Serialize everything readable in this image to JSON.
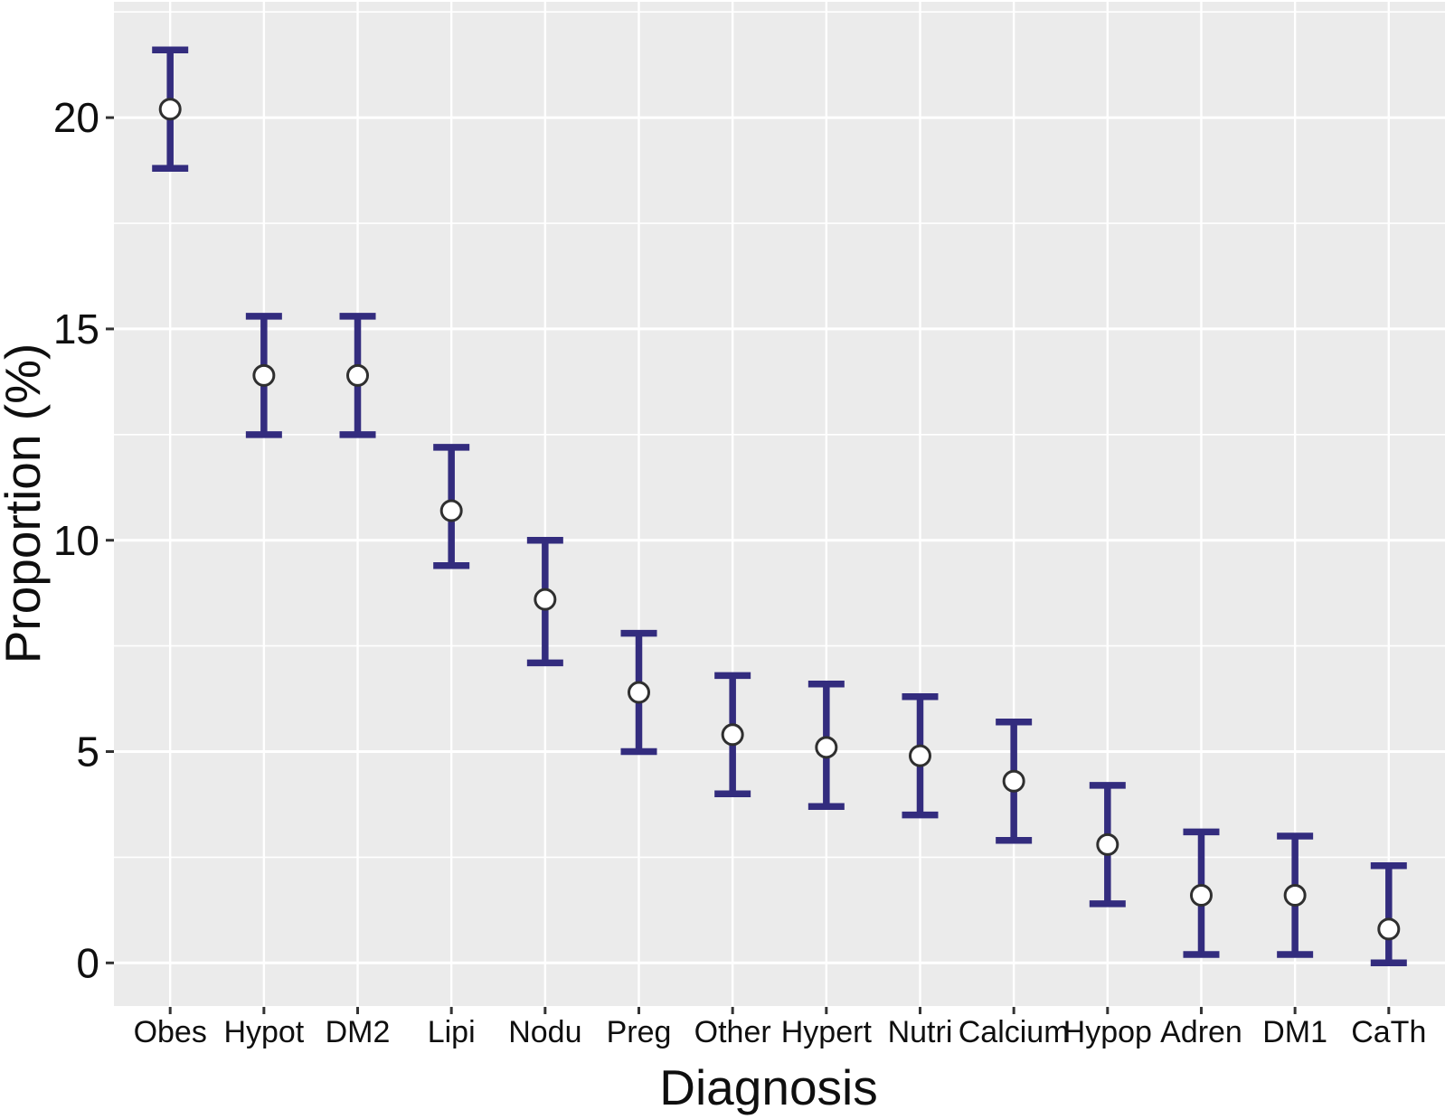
{
  "chart_data": {
    "type": "scatter",
    "subtype": "point-with-errorbars",
    "title": "",
    "xlabel": "Diagnosis",
    "ylabel": "Proportion (%)",
    "categories": [
      "Obes",
      "Hypot",
      "DM2",
      "Lipi",
      "Nodu",
      "Preg",
      "Other",
      "Hypert",
      "Nutri",
      "Calcium",
      "Hypop",
      "Adren",
      "DM1",
      "CaTh"
    ],
    "series": [
      {
        "name": "Proportion (%)",
        "values": [
          20.2,
          13.9,
          13.9,
          10.7,
          8.6,
          6.4,
          5.4,
          5.1,
          4.9,
          4.3,
          2.8,
          1.6,
          1.6,
          0.8
        ],
        "ci_lower": [
          18.8,
          12.5,
          12.5,
          9.4,
          7.1,
          5.0,
          4.0,
          3.7,
          3.5,
          2.9,
          1.4,
          0.2,
          0.2,
          0.0
        ],
        "ci_upper": [
          21.6,
          15.3,
          15.3,
          12.2,
          10.0,
          7.8,
          6.8,
          6.6,
          6.3,
          5.7,
          4.2,
          3.1,
          3.0,
          2.3
        ]
      }
    ],
    "ylim": [
      -1.02,
      22.74
    ],
    "yticks": [
      0,
      5,
      10,
      15,
      20
    ],
    "ytick_labels": [
      "0",
      "5",
      "10",
      "15",
      "20"
    ],
    "yticks_minor": [
      2.5,
      7.5,
      12.5,
      17.5,
      22.5
    ],
    "grid": "white major and minor horizontal lines plus one vertical line per category on grey panel",
    "legend": "none",
    "colors": {
      "errorbar": "#332c7e",
      "point_fill": "#ffffff",
      "point_stroke": "#2f2f2f",
      "panel_bg": "#ebebeb",
      "gridline": "#ffffff",
      "tick": "#333333",
      "text": "#0f0f0f",
      "page_bg": "#ffffff"
    }
  }
}
